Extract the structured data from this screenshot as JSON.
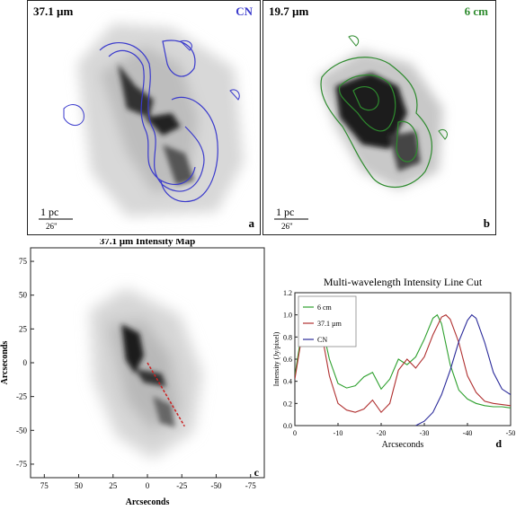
{
  "panel_a": {
    "wavelength": "37.1 µm",
    "contour_label": "CN",
    "contour_color": "#3a3acc",
    "scale_pc": "1 pc",
    "scale_arcsec": "26\"",
    "letter": "a"
  },
  "panel_b": {
    "wavelength": "19.7 µm",
    "contour_label": "6 cm",
    "contour_color": "#2e8b2e",
    "scale_pc": "1 pc",
    "scale_arcsec": "26\"",
    "letter": "b"
  },
  "chart_data": [
    {
      "type": "heatmap",
      "panel": "c",
      "title": "37.1 µm Intensity Map",
      "xlabel": "Arcseconds",
      "ylabel": "Arcseconds",
      "xlim": [
        85,
        -85
      ],
      "ylim": [
        -85,
        85
      ],
      "xticks": [
        75,
        50,
        25,
        0,
        -25,
        -50,
        -75
      ],
      "xtick_labels": [
        "75",
        "50",
        "25",
        "0",
        "-25",
        "-50",
        "-75"
      ],
      "yticks": [
        75,
        50,
        25,
        0,
        -25,
        -50,
        -75
      ],
      "ytick_labels": [
        "75",
        "50",
        "25",
        "0",
        "-25",
        "-50",
        "-75"
      ],
      "cut_line": {
        "color": "#cc2222",
        "from": [
          0,
          0
        ],
        "to": [
          -27,
          -47
        ]
      },
      "letter": "c"
    },
    {
      "type": "line",
      "panel": "d",
      "title": "Multi-wavelength Intensity Line Cut",
      "xlabel": "Arcseconds",
      "ylabel": "Intensity (Jy/pixel)",
      "xlim": [
        0,
        -50
      ],
      "ylim": [
        0,
        1.2
      ],
      "xticks": [
        0,
        -10,
        -20,
        -30,
        -40,
        -50
      ],
      "xtick_labels": [
        "0",
        "-10",
        "-20",
        "-30",
        "-40",
        "-50"
      ],
      "yticks": [
        0,
        0.2,
        0.4,
        0.6,
        0.8,
        1.0,
        1.2
      ],
      "ytick_labels": [
        "0.0",
        "0.2",
        "0.4",
        "0.6",
        "0.8",
        "1.0",
        "1.2"
      ],
      "legend_position": "top-left",
      "letter": "d",
      "series": [
        {
          "name": "6 cm",
          "color": "#2ea02e",
          "x": [
            0,
            -2,
            -4,
            -6,
            -8,
            -10,
            -12,
            -14,
            -16,
            -18,
            -20,
            -22,
            -24,
            -26,
            -28,
            -30,
            -32,
            -33,
            -34,
            -36,
            -38,
            -40,
            -42,
            -44,
            -46,
            -48,
            -50
          ],
          "y": [
            0.45,
            0.95,
            1.05,
            0.95,
            0.6,
            0.38,
            0.34,
            0.36,
            0.44,
            0.48,
            0.33,
            0.42,
            0.6,
            0.55,
            0.62,
            0.78,
            0.97,
            1.0,
            0.92,
            0.55,
            0.32,
            0.24,
            0.2,
            0.18,
            0.17,
            0.17,
            0.16
          ]
        },
        {
          "name": "37.1 µm",
          "color": "#b03030",
          "x": [
            0,
            -2,
            -4,
            -6,
            -8,
            -10,
            -12,
            -14,
            -16,
            -18,
            -20,
            -22,
            -24,
            -26,
            -28,
            -30,
            -32,
            -34,
            -35,
            -36,
            -38,
            -40,
            -42,
            -44,
            -46,
            -48,
            -50
          ],
          "y": [
            0.42,
            0.9,
            1.02,
            0.88,
            0.45,
            0.2,
            0.14,
            0.12,
            0.15,
            0.23,
            0.12,
            0.2,
            0.5,
            0.6,
            0.52,
            0.62,
            0.82,
            0.98,
            1.0,
            0.96,
            0.75,
            0.45,
            0.3,
            0.22,
            0.2,
            0.19,
            0.18
          ]
        },
        {
          "name": "CN",
          "color": "#2a2a9a",
          "x": [
            -28,
            -30,
            -32,
            -34,
            -36,
            -38,
            -40,
            -41,
            -42,
            -44,
            -46,
            -48,
            -50
          ],
          "y": [
            0.0,
            0.04,
            0.12,
            0.28,
            0.5,
            0.76,
            0.95,
            1.0,
            0.97,
            0.75,
            0.48,
            0.33,
            0.28
          ]
        }
      ]
    }
  ]
}
